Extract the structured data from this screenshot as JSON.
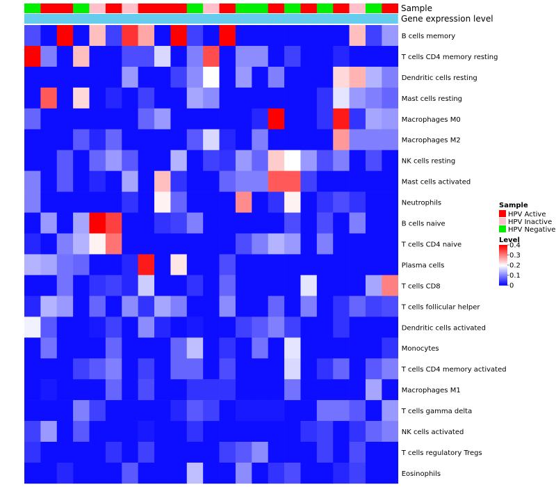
{
  "chart_data": {
    "type": "heatmap",
    "annotation_titles": {
      "sample": "Sample",
      "gene_expression": "Gene expression level"
    },
    "sample_annotation": [
      "HPV Negative",
      "HPV Active",
      "HPV Active",
      "HPV Negative",
      "HPV Inactive",
      "HPV Active",
      "HPV Inactive",
      "HPV Active",
      "HPV Active",
      "HPV Active",
      "HPV Negative",
      "HPV Inactive",
      "HPV Active",
      "HPV Negative",
      "HPV Negative",
      "HPV Active",
      "HPV Negative",
      "HPV Active",
      "HPV Negative",
      "HPV Active",
      "HPV Inactive",
      "HPV Negative",
      "HPV Active"
    ],
    "rows": [
      "B cells memory",
      "T cells CD4 memory resting",
      "Dendritic cells resting",
      "Mast cells resting",
      "Macrophages M0",
      "Macrophages M2",
      "NK cells resting",
      "Mast cells activated",
      "Neutrophils",
      "B cells naive",
      "T cells CD4 naive",
      "Plasma cells",
      "T cells CD8",
      "T cells follicular helper",
      "Dendritic cells activated",
      "Monocytes",
      "T cells CD4 memory activated",
      "Macrophages M1",
      "T cells gamma delta",
      "NK cells activated",
      "T cells regulatory  Tregs",
      "Eosinophils"
    ],
    "values": [
      [
        0.06,
        0.01,
        0.4,
        0.01,
        0.25,
        0.05,
        0.36,
        0.27,
        0.01,
        0.4,
        0.05,
        0.01,
        0.4,
        0.01,
        0.01,
        0.01,
        0.01,
        0.01,
        0.01,
        0.01,
        0.25,
        0.05,
        0.12
      ],
      [
        0.4,
        0.1,
        0.01,
        0.25,
        0.01,
        0.01,
        0.06,
        0.06,
        0.17,
        0.01,
        0.1,
        0.34,
        0.01,
        0.11,
        0.11,
        0.01,
        0.05,
        0.01,
        0.01,
        0.03,
        0.01,
        0.01,
        0.01
      ],
      [
        0.01,
        0.01,
        0.01,
        0.01,
        0.01,
        0.01,
        0.12,
        0.01,
        0.01,
        0.05,
        0.11,
        0.2,
        0.01,
        0.12,
        0.01,
        0.1,
        0.01,
        0.01,
        0.01,
        0.23,
        0.26,
        0.14,
        0.1
      ],
      [
        0.01,
        0.33,
        0.01,
        0.23,
        0.01,
        0.03,
        0.01,
        0.05,
        0.01,
        0.01,
        0.13,
        0.11,
        0.01,
        0.01,
        0.01,
        0.01,
        0.01,
        0.01,
        0.04,
        0.18,
        0.12,
        0.1,
        0.08
      ],
      [
        0.08,
        0.01,
        0.01,
        0.01,
        0.01,
        0.01,
        0.01,
        0.08,
        0.12,
        0.01,
        0.01,
        0.01,
        0.01,
        0.01,
        0.03,
        0.4,
        0.01,
        0.01,
        0.04,
        0.38,
        0.04,
        0.13,
        0.12
      ],
      [
        0.01,
        0.01,
        0.01,
        0.07,
        0.03,
        0.08,
        0.01,
        0.01,
        0.01,
        0.01,
        0.07,
        0.17,
        0.03,
        0.01,
        0.1,
        0.01,
        0.01,
        0.01,
        0.01,
        0.28,
        0.1,
        0.1,
        0.1
      ],
      [
        0.01,
        0.01,
        0.07,
        0.01,
        0.08,
        0.12,
        0.07,
        0.01,
        0.01,
        0.14,
        0.01,
        0.05,
        0.04,
        0.12,
        0.08,
        0.24,
        0.2,
        0.12,
        0.06,
        0.1,
        0.01,
        0.06,
        0.01
      ],
      [
        0.1,
        0.01,
        0.07,
        0.01,
        0.03,
        0.01,
        0.13,
        0.01,
        0.25,
        0.04,
        0.01,
        0.01,
        0.08,
        0.1,
        0.1,
        0.33,
        0.33,
        0.05,
        0.01,
        0.01,
        0.01,
        0.01,
        0.01
      ],
      [
        0.1,
        0.01,
        0.01,
        0.01,
        0.01,
        0.01,
        0.04,
        0.01,
        0.21,
        0.08,
        0.01,
        0.01,
        0.01,
        0.29,
        0.01,
        0.04,
        0.21,
        0.01,
        0.04,
        0.06,
        0.04,
        0.01,
        0.01
      ],
      [
        0.01,
        0.12,
        0.01,
        0.13,
        0.4,
        0.35,
        0.01,
        0.01,
        0.04,
        0.05,
        0.1,
        0.01,
        0.01,
        0.01,
        0.01,
        0.01,
        0.06,
        0.01,
        0.06,
        0.01,
        0.1,
        0.01,
        0.01
      ],
      [
        0.03,
        0.01,
        0.1,
        0.14,
        0.21,
        0.31,
        0.01,
        0.01,
        0.01,
        0.01,
        0.01,
        0.01,
        0.01,
        0.06,
        0.1,
        0.14,
        0.12,
        0.01,
        0.1,
        0.01,
        0.01,
        0.01,
        0.01
      ],
      [
        0.14,
        0.13,
        0.09,
        0.08,
        0.01,
        0.01,
        0.03,
        0.38,
        0.01,
        0.22,
        0.01,
        0.01,
        0.06,
        0.01,
        0.01,
        0.01,
        0.01,
        0.01,
        0.01,
        0.01,
        0.01,
        0.01,
        0.01
      ],
      [
        0.01,
        0.01,
        0.09,
        0.01,
        0.04,
        0.05,
        0.03,
        0.16,
        0.01,
        0.01,
        0.04,
        0.01,
        0.08,
        0.01,
        0.01,
        0.01,
        0.01,
        0.18,
        0.01,
        0.01,
        0.01,
        0.13,
        0.3
      ],
      [
        0.03,
        0.14,
        0.12,
        0.01,
        0.08,
        0.01,
        0.11,
        0.04,
        0.13,
        0.1,
        0.01,
        0.01,
        0.11,
        0.01,
        0.01,
        0.08,
        0.01,
        0.1,
        0.01,
        0.04,
        0.08,
        0.05,
        0.06
      ],
      [
        0.19,
        0.07,
        0.01,
        0.01,
        0.02,
        0.05,
        0.01,
        0.11,
        0.03,
        0.01,
        0.02,
        0.01,
        0.01,
        0.05,
        0.07,
        0.1,
        0.05,
        0.01,
        0.01,
        0.04,
        0.01,
        0.01,
        0.01
      ],
      [
        0.01,
        0.09,
        0.01,
        0.01,
        0.01,
        0.08,
        0.01,
        0.01,
        0.01,
        0.08,
        0.15,
        0.01,
        0.04,
        0.01,
        0.09,
        0.01,
        0.18,
        0.01,
        0.01,
        0.01,
        0.01,
        0.01,
        0.04
      ],
      [
        0.01,
        0.01,
        0.01,
        0.05,
        0.07,
        0.1,
        0.01,
        0.05,
        0.01,
        0.08,
        0.08,
        0.01,
        0.06,
        0.01,
        0.01,
        0.01,
        0.17,
        0.01,
        0.04,
        0.08,
        0.01,
        0.07,
        0.1
      ],
      [
        0.01,
        0.02,
        0.01,
        0.01,
        0.01,
        0.08,
        0.01,
        0.06,
        0.01,
        0.01,
        0.04,
        0.04,
        0.04,
        0.01,
        0.01,
        0.01,
        0.09,
        0.01,
        0.01,
        0.01,
        0.01,
        0.13,
        0.01
      ],
      [
        0.01,
        0.01,
        0.01,
        0.1,
        0.05,
        0.01,
        0.01,
        0.01,
        0.01,
        0.03,
        0.07,
        0.05,
        0.01,
        0.02,
        0.02,
        0.02,
        0.01,
        0.01,
        0.09,
        0.09,
        0.07,
        0.01,
        0.12
      ],
      [
        0.05,
        0.12,
        0.01,
        0.07,
        0.01,
        0.01,
        0.01,
        0.02,
        0.01,
        0.01,
        0.04,
        0.01,
        0.01,
        0.01,
        0.01,
        0.01,
        0.01,
        0.04,
        0.05,
        0.01,
        0.04,
        0.08,
        0.1
      ],
      [
        0.04,
        0.01,
        0.01,
        0.01,
        0.01,
        0.04,
        0.01,
        0.05,
        0.01,
        0.01,
        0.01,
        0.01,
        0.05,
        0.07,
        0.11,
        0.01,
        0.01,
        0.01,
        0.05,
        0.01,
        0.06,
        0.01,
        0.01
      ],
      [
        0.01,
        0.01,
        0.03,
        0.01,
        0.01,
        0.01,
        0.07,
        0.01,
        0.01,
        0.01,
        0.15,
        0.01,
        0.01,
        0.11,
        0.01,
        0.04,
        0.06,
        0.01,
        0.01,
        0.03,
        0.05,
        0.01,
        0.01
      ]
    ],
    "sample_legend": {
      "title": "Sample",
      "items": [
        {
          "label": "HPV Active",
          "color": "#ff0000"
        },
        {
          "label": "HPV Inactive",
          "color": "#ffc0cb"
        },
        {
          "label": "HPV Negative",
          "color": "#00ee00"
        }
      ]
    },
    "level_legend": {
      "title": "Level",
      "ticks": [
        {
          "value": 0.4,
          "label": "0.4"
        },
        {
          "value": 0.3,
          "label": "0.3"
        },
        {
          "value": 0.2,
          "label": "0.2"
        },
        {
          "value": 0.1,
          "label": "0.1"
        },
        {
          "value": 0.0,
          "label": "0"
        }
      ]
    },
    "value_range": [
      0,
      0.4
    ],
    "colors": {
      "low": "#0000ff",
      "mid": "#ffffff",
      "high": "#ff0000",
      "gene_expression_bar": "#66ccee"
    },
    "legend_position": "right"
  }
}
